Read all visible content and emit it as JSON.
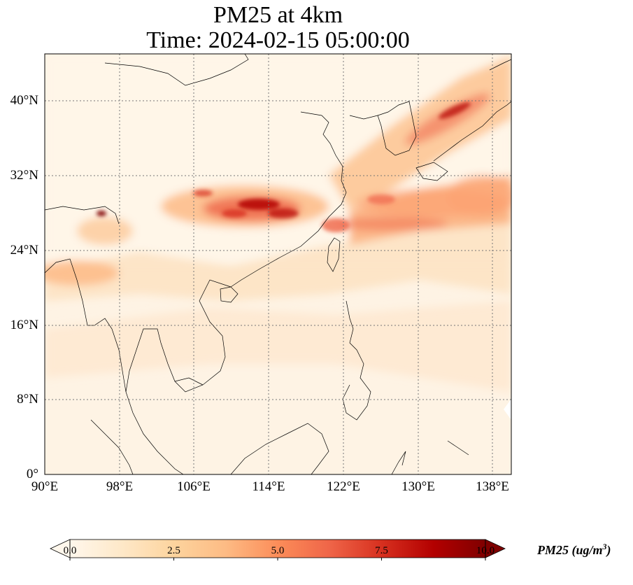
{
  "title": {
    "line1": "PM25 at 4km",
    "line2": "Time: 2024-02-15 05:00:00"
  },
  "map": {
    "lon_range": [
      90,
      140
    ],
    "lat_range": [
      0,
      45
    ],
    "x_ticks": [
      "90°E",
      "98°E",
      "106°E",
      "114°E",
      "122°E",
      "130°E",
      "138°E"
    ],
    "y_ticks": [
      "40°N",
      "32°N",
      "24°N",
      "16°N",
      "8°N",
      "0°"
    ],
    "gridlines": "dotted",
    "field": "PM25",
    "colormap": "OrRd"
  },
  "colorbar": {
    "ticks": [
      "0.0",
      "2.5",
      "5.0",
      "7.5",
      "10.0"
    ],
    "label_main": "PM25 (ug/m",
    "label_sup": "3",
    "label_close": ")",
    "range": [
      0,
      10
    ],
    "extend": "both",
    "colors": [
      "#fff7ec",
      "#fee8c8",
      "#fdd49e",
      "#fdbb84",
      "#fc8d59",
      "#ef6548",
      "#d7301f",
      "#b30000",
      "#7f0000"
    ]
  }
}
